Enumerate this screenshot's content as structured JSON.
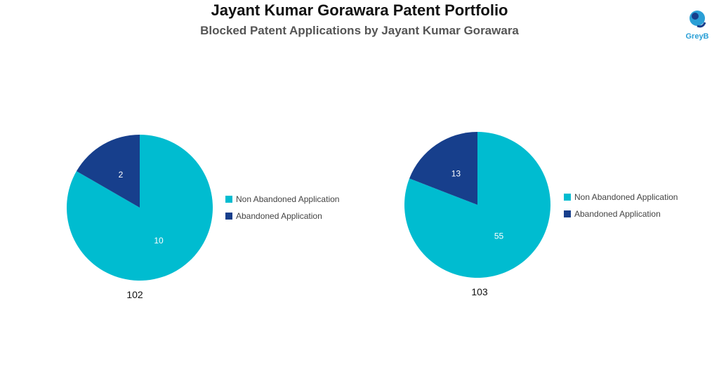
{
  "header": {
    "title": "Jayant Kumar Gorawara Patent Portfolio",
    "subtitle": "Blocked Patent Applications by Jayant Kumar Gorawara"
  },
  "logo": {
    "text": "GreyB",
    "icon": "greyb-logo-icon",
    "color": "#2a9fd6"
  },
  "colors": {
    "non_abandoned": "#00bcd0",
    "abandoned": "#173f8c"
  },
  "chart_data": [
    {
      "type": "pie",
      "caption": "102",
      "slices": [
        {
          "label": "Non Abandoned Application",
          "value": 10
        },
        {
          "label": "Abandoned Application",
          "value": 2
        }
      ],
      "legend": [
        "Non Abandoned Application",
        "Abandoned Application"
      ],
      "legend_position": "right"
    },
    {
      "type": "pie",
      "caption": "103",
      "slices": [
        {
          "label": "Non Abandoned Application",
          "value": 55
        },
        {
          "label": "Abandoned Application",
          "value": 13
        }
      ],
      "legend": [
        "Non Abandoned Application",
        "Abandoned Application"
      ],
      "legend_position": "right"
    }
  ]
}
